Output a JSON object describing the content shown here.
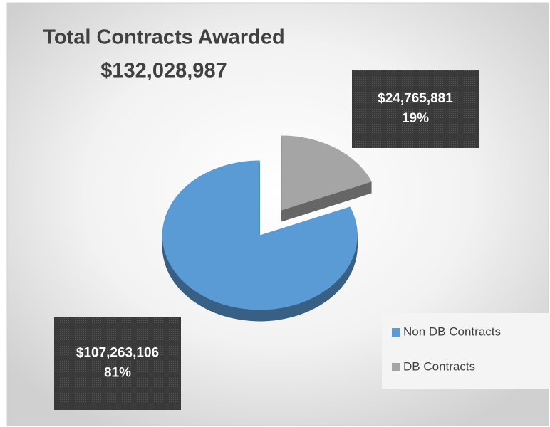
{
  "chart_data": {
    "type": "pie",
    "title": "Total Contracts Awarded",
    "subtitle": "$132,028,987",
    "categories": [
      "Non DB Contracts",
      "DB Contracts"
    ],
    "values": [
      107263106,
      24765881
    ],
    "value_labels": [
      "$107,263,106",
      "$24,765,881"
    ],
    "percent_labels": [
      "81%",
      "19%"
    ],
    "colors": [
      "#5b9bd5",
      "#a5a5a5"
    ],
    "legend": "right"
  }
}
